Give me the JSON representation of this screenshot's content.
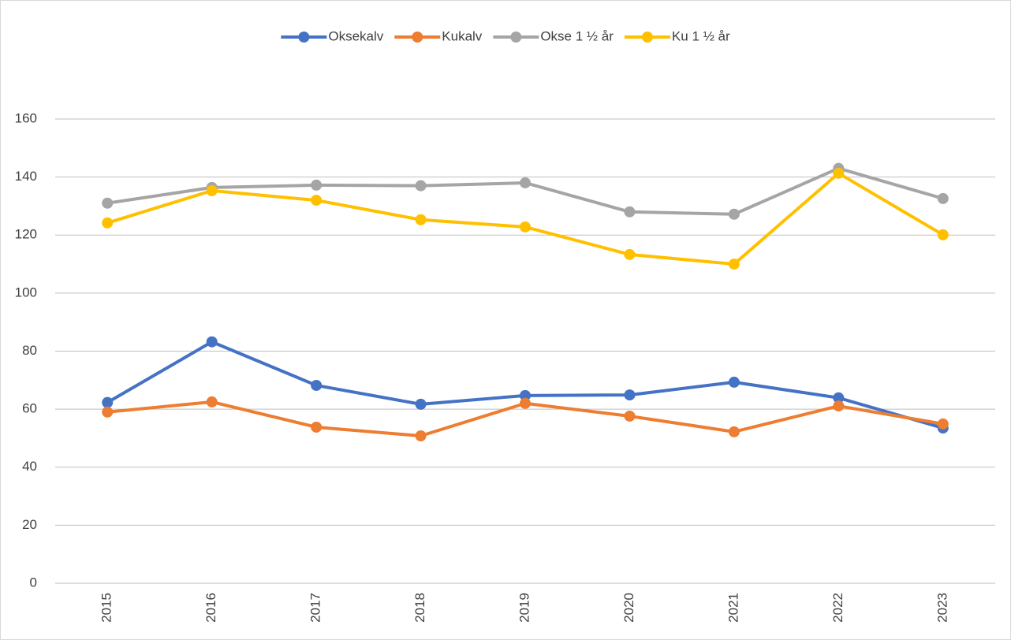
{
  "chart_data": {
    "type": "line",
    "categories": [
      "2015",
      "2016",
      "2017",
      "2018",
      "2019",
      "2020",
      "2021",
      "2022",
      "2023"
    ],
    "series": [
      {
        "name": "Oksekalv",
        "color": "#4472c4",
        "values": [
          62.3,
          83.2,
          68.2,
          61.7,
          64.7,
          64.9,
          69.3,
          63.9,
          53.5
        ]
      },
      {
        "name": "Kukalv",
        "color": "#ed7d31",
        "values": [
          59.0,
          62.5,
          53.8,
          50.8,
          62.0,
          57.6,
          52.2,
          61.1,
          54.9
        ]
      },
      {
        "name": "Okse 1 ½ år",
        "color": "#a5a5a5",
        "values": [
          131.0,
          136.4,
          137.2,
          137.0,
          138.0,
          128.0,
          127.2,
          143.0,
          132.6
        ]
      },
      {
        "name": "Ku 1 ½ år",
        "color": "#ffc000",
        "values": [
          124.2,
          135.3,
          132.0,
          125.3,
          122.8,
          113.3,
          110.0,
          141.3,
          120.1
        ]
      }
    ],
    "ylim": [
      0,
      160
    ],
    "yticks": [
      0,
      20,
      40,
      60,
      80,
      100,
      120,
      140,
      160
    ],
    "grid": true,
    "legend": "top"
  }
}
